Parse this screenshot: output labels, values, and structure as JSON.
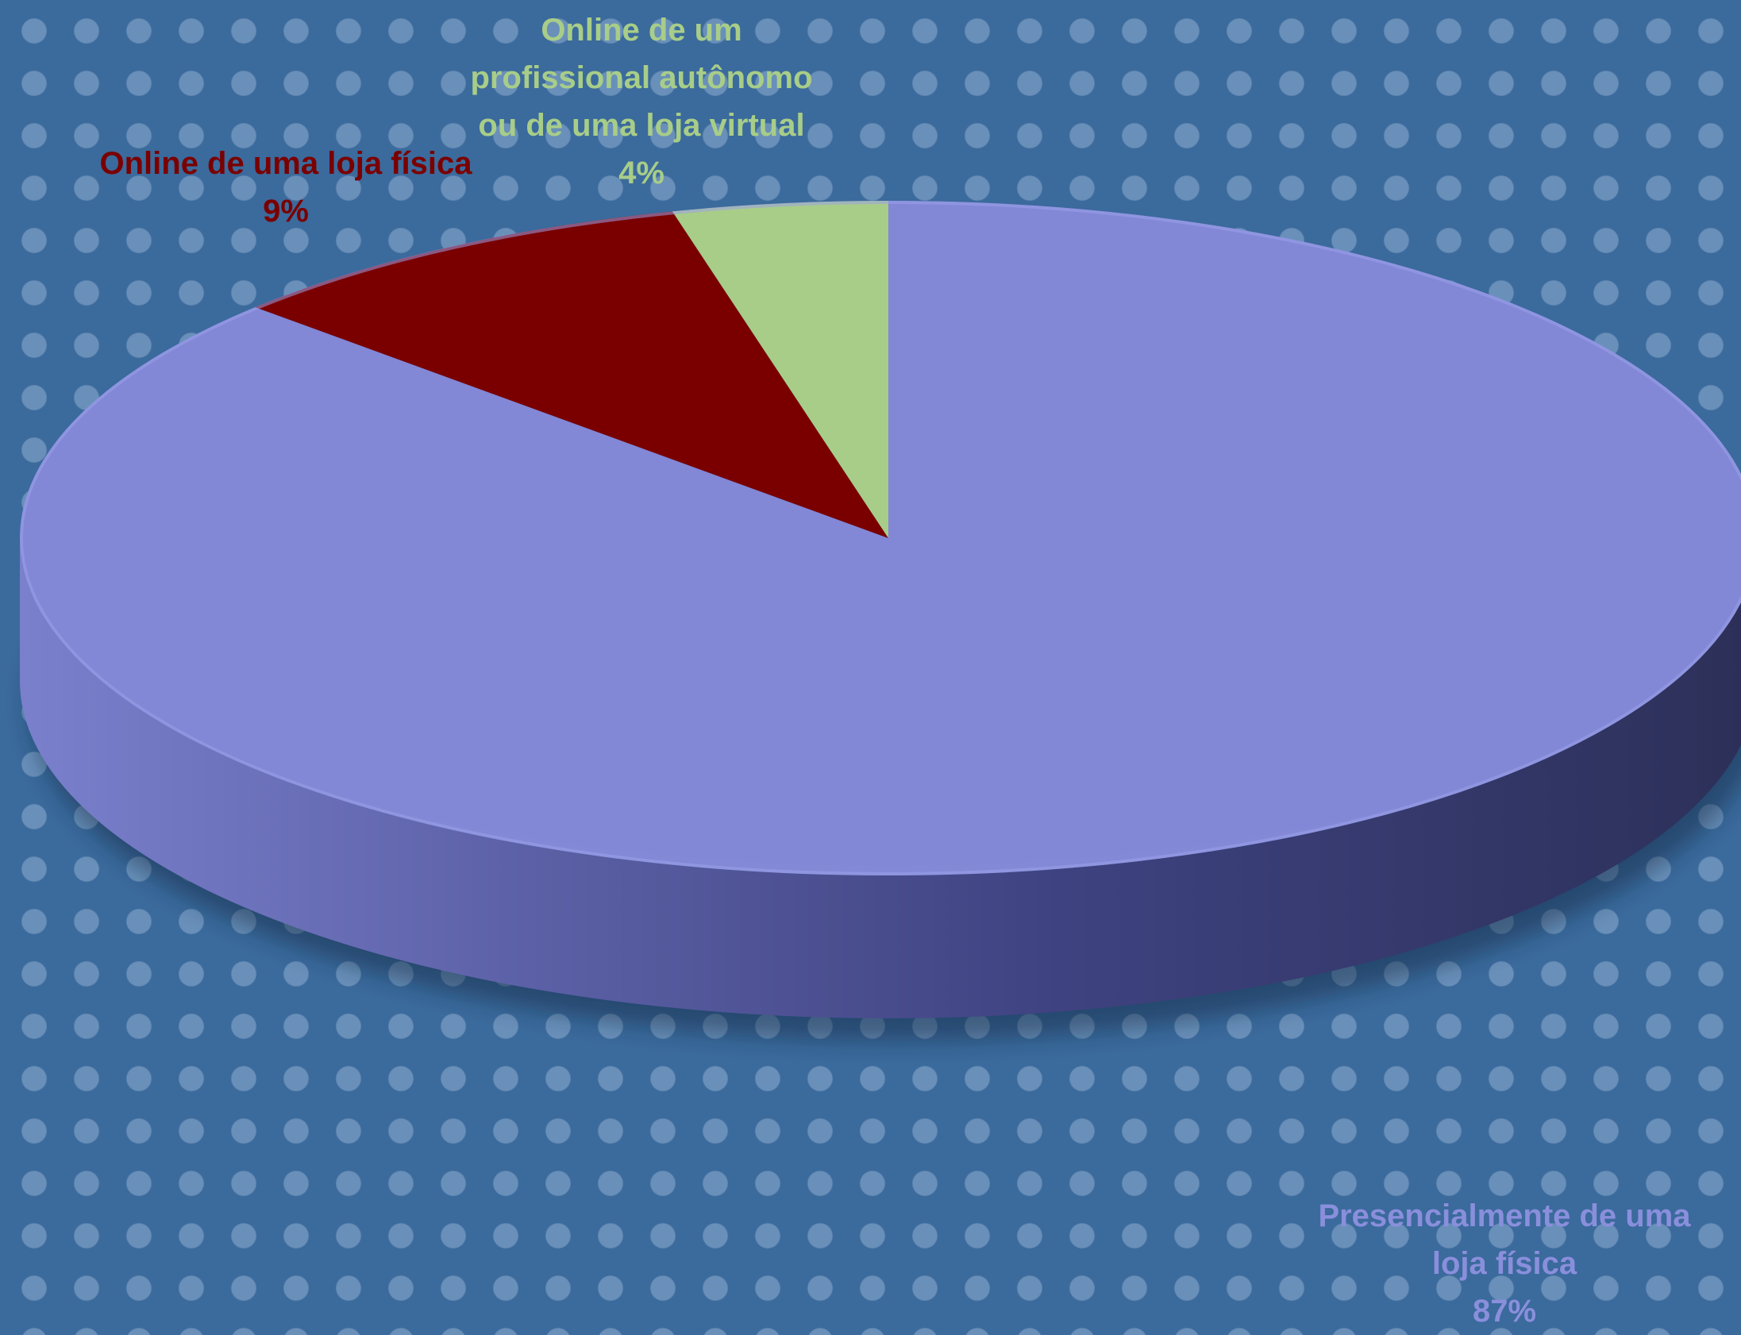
{
  "chart_data": {
    "type": "pie",
    "style": "3d",
    "series": [
      {
        "values": [
          87,
          9,
          4
        ],
        "categories": [
          "Presencialmente de uma loja física",
          "Online de uma loja física",
          "Online de um profissional autônomo ou de uma loja virtual"
        ]
      }
    ],
    "slices": [
      {
        "id": "presencial",
        "name_lines": [
          "Presencialmente de uma",
          "loja física"
        ],
        "value": 87,
        "value_label": "87%",
        "color": "#8287d6"
      },
      {
        "id": "online-fisica",
        "name_lines": [
          "Online de uma loja física"
        ],
        "value": 9,
        "value_label": "9%",
        "color": "#7a0000"
      },
      {
        "id": "online-autonomo",
        "name_lines": [
          "Online de um",
          "profissional autônomo",
          "ou de uma loja virtual"
        ],
        "value": 4,
        "value_label": "4%",
        "color": "#a8cd88"
      }
    ],
    "legend": "none",
    "data_labels": "outside, category name and percentage",
    "background_color": "#3b6a9c"
  }
}
